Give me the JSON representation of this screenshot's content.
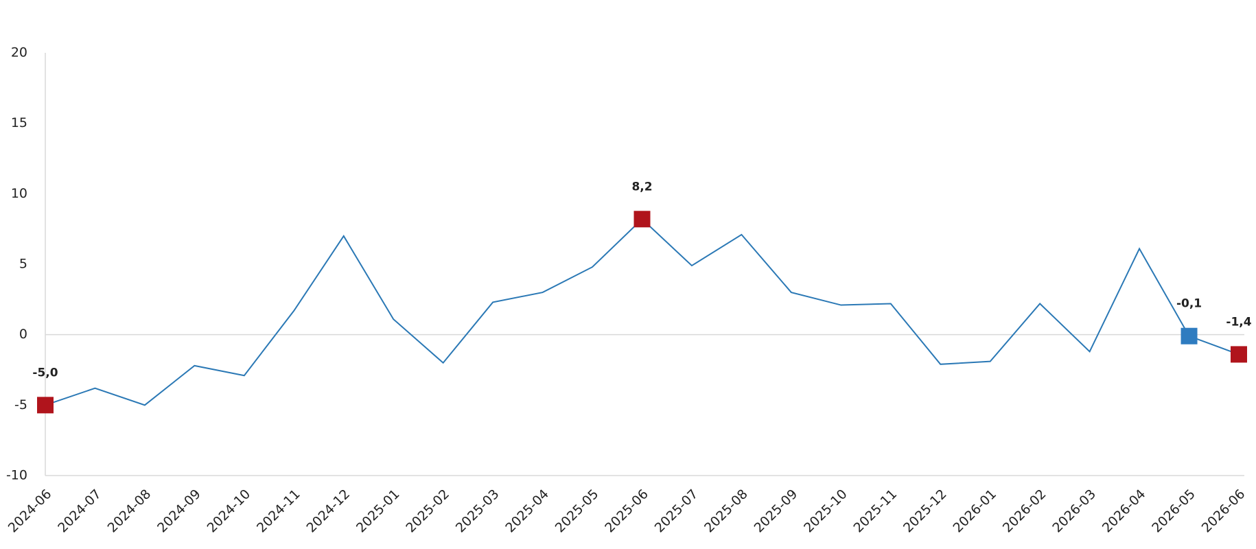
{
  "chart_data": {
    "type": "line",
    "categories": [
      "2024-06",
      "2024-07",
      "2024-08",
      "2024-09",
      "2024-10",
      "2024-11",
      "2024-12",
      "2025-01",
      "2025-02",
      "2025-03",
      "2025-04",
      "2025-05",
      "2025-06",
      "2025-07",
      "2025-08",
      "2025-09",
      "2025-10",
      "2025-11",
      "2025-12",
      "2026-01",
      "2026-02",
      "2026-03",
      "2026-04",
      "2026-05",
      "2026-06"
    ],
    "values": [
      -5.0,
      -3.8,
      -5.0,
      -2.2,
      -2.9,
      1.7,
      7.0,
      1.1,
      -2.0,
      2.3,
      3.0,
      4.8,
      8.2,
      4.9,
      7.1,
      3.0,
      2.1,
      2.2,
      -2.1,
      -1.9,
      2.2,
      -1.2,
      6.1,
      -0.1,
      -1.4
    ],
    "value_labels": [
      "-5,0",
      null,
      null,
      null,
      null,
      null,
      null,
      null,
      null,
      null,
      null,
      null,
      "8,2",
      null,
      null,
      null,
      null,
      null,
      null,
      null,
      null,
      null,
      null,
      "-0,1",
      "-1,4"
    ],
    "marker_colors": [
      "#b0141c",
      null,
      null,
      null,
      null,
      null,
      null,
      null,
      null,
      null,
      null,
      null,
      "#b0141c",
      null,
      null,
      null,
      null,
      null,
      null,
      null,
      null,
      null,
      null,
      "#2e7cc0",
      "#b0141c"
    ],
    "color": "#2a78b5",
    "ylim": [
      -10,
      20
    ],
    "yticks": [
      -10,
      -5,
      0,
      5,
      10,
      15,
      20
    ]
  }
}
